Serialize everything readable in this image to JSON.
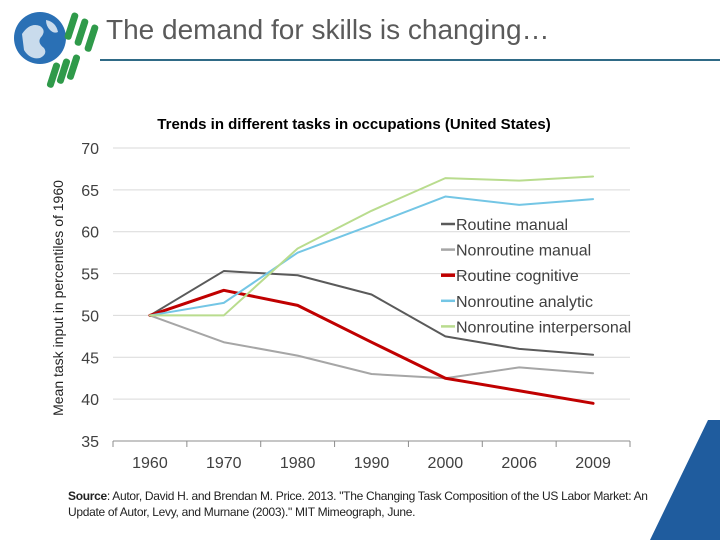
{
  "slide": {
    "title": "The demand for skills is changing…"
  },
  "colors": {
    "title_rule": "#2f6a86",
    "accent_corner": "#1f5c9e"
  },
  "chart_data": {
    "type": "line",
    "title": "Trends in different tasks in occupations (United States)",
    "ylabel": "Mean task input in percentiles of 1960",
    "xlabel": "",
    "categories": [
      "1960",
      "1970",
      "1980",
      "1990",
      "2000",
      "2006",
      "2009"
    ],
    "ylim": [
      35,
      70
    ],
    "yticks": [
      "35",
      "40",
      "45",
      "50",
      "55",
      "60",
      "65",
      "70"
    ],
    "grid": true,
    "legend_position": "right",
    "series": [
      {
        "name": "Routine manual",
        "color": "#5a5a5a",
        "width": 2,
        "values": [
          50,
          55.3,
          54.8,
          52.5,
          47.5,
          46,
          45.3
        ]
      },
      {
        "name": "Nonroutine manual",
        "color": "#a6a6a6",
        "width": 2,
        "values": [
          50,
          46.8,
          45.2,
          43,
          42.5,
          43.8,
          43.1
        ]
      },
      {
        "name": "Routine cognitive",
        "color": "#c00000",
        "width": 3,
        "values": [
          50,
          53,
          51.2,
          46.8,
          42.5,
          41,
          39.5
        ]
      },
      {
        "name": "Nonroutine analytic",
        "color": "#74c6e5",
        "width": 2,
        "values": [
          50,
          51.5,
          57.5,
          60.8,
          64.2,
          63.2,
          63.9
        ]
      },
      {
        "name": "Nonroutine interpersonal",
        "color": "#b9dc8e",
        "width": 2,
        "values": [
          50,
          50,
          58,
          62.5,
          66.4,
          66.1,
          66.6
        ]
      }
    ]
  },
  "source": {
    "label": "Source",
    "text": ": Autor, David H. and Brendan M. Price. 2013. \"The Changing Task Composition of the US Labor Market: An Update of Autor, Levy, and Murnane (2003).\" MIT Mimeograph, June."
  }
}
